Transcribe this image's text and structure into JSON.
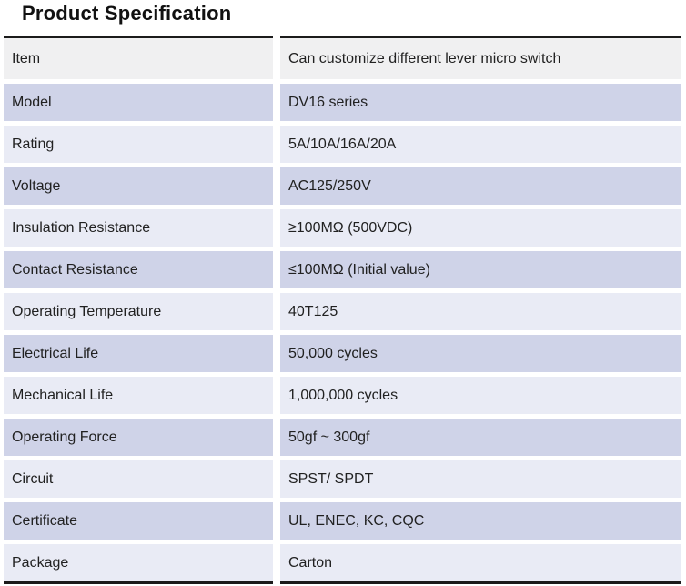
{
  "title": "Product Specification",
  "table": {
    "rows": [
      {
        "label": "Item",
        "value": "Can customize different lever micro switch"
      },
      {
        "label": "Model",
        "value": "DV16 series"
      },
      {
        "label": "Rating",
        "value": "5A/10A/16A/20A"
      },
      {
        "label": "Voltage",
        "value": "AC125/250V"
      },
      {
        "label": "Insulation Resistance",
        "value": "≥100MΩ (500VDC)"
      },
      {
        "label": "Contact Resistance",
        "value": "≤100MΩ (Initial value)"
      },
      {
        "label": "Operating Temperature",
        "value": "40T125"
      },
      {
        "label": "Electrical Life",
        "value": "50,000 cycles"
      },
      {
        "label": "Mechanical Life",
        "value": "1,000,000 cycles"
      },
      {
        "label": "Operating Force",
        "value": "50gf ~ 300gf"
      },
      {
        "label": "Circuit",
        "value": "SPST/ SPDT"
      },
      {
        "label": "Certificate",
        "value": "UL, ENEC, KC, CQC"
      },
      {
        "label": "Package",
        "value": "Carton"
      }
    ]
  },
  "colors": {
    "row_dark": "#cfd3e8",
    "row_light": "#e9ebf5",
    "header_gray": "#f0f0f1",
    "border": "#1b1b1b"
  }
}
